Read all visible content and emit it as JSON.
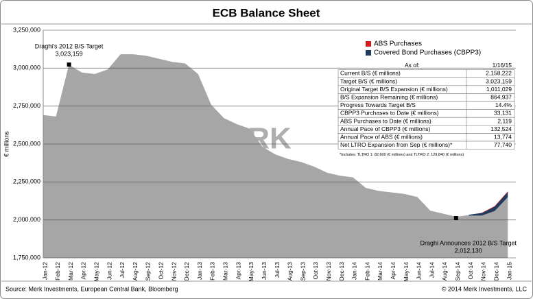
{
  "chart_data": {
    "type": "area",
    "title": "ECB Balance Sheet",
    "y_label": "€ millions",
    "watermark": "MERK",
    "categories": [
      "Jan-12",
      "Feb-12",
      "Mar-12",
      "Apr-12",
      "May-12",
      "Jun-12",
      "Jul-12",
      "Aug-12",
      "Sep-12",
      "Oct-12",
      "Nov-12",
      "Dec-12",
      "Jan-13",
      "Feb-13",
      "Mar-13",
      "Apr-13",
      "May-13",
      "Jun-13",
      "Jul-13",
      "Aug-13",
      "Sep-13",
      "Oct-13",
      "Nov-13",
      "Dec-13",
      "Jan-14",
      "Feb-14",
      "Mar-14",
      "Apr-14",
      "May-14",
      "Jun-14",
      "Jul-14",
      "Aug-14",
      "Sep-14",
      "Oct-14",
      "Nov-14",
      "Dec-14",
      "Jan-15"
    ],
    "series": [
      {
        "color": "#a6a6a6",
        "values": [
          2690000,
          2680000,
          3020000,
          2970000,
          2960000,
          2990000,
          3090000,
          3090000,
          3080000,
          3060000,
          3040000,
          3030000,
          2960000,
          2760000,
          2670000,
          2630000,
          2600000,
          2480000,
          2430000,
          2400000,
          2380000,
          2350000,
          2310000,
          2290000,
          2280000,
          2210000,
          2190000,
          2180000,
          2170000,
          2150000,
          2060000,
          2040000,
          2020000,
          2030000,
          2030000,
          2060000,
          2150000
        ]
      },
      {
        "name": "Covered Bond Purchases (CBPP3)",
        "color": "#1f3b5e",
        "values": [
          null,
          null,
          null,
          null,
          null,
          null,
          null,
          null,
          null,
          null,
          null,
          null,
          null,
          null,
          null,
          null,
          null,
          null,
          null,
          null,
          null,
          null,
          null,
          null,
          null,
          null,
          null,
          null,
          null,
          null,
          null,
          null,
          null,
          3000,
          15000,
          28000,
          33000
        ]
      },
      {
        "name": "ABS Purchases",
        "color": "#d7191c",
        "values": [
          null,
          null,
          null,
          null,
          null,
          null,
          null,
          null,
          null,
          null,
          null,
          null,
          null,
          null,
          null,
          null,
          null,
          null,
          null,
          null,
          null,
          null,
          null,
          null,
          null,
          null,
          null,
          null,
          null,
          null,
          null,
          null,
          null,
          null,
          500,
          1500,
          2000
        ]
      }
    ],
    "ylim": [
      1750000,
      3250000
    ],
    "yticks": [
      {
        "value": 1750000,
        "label": "1,750,000"
      },
      {
        "value": 2000000,
        "label": "2,000,000"
      },
      {
        "value": 2250000,
        "label": "2,250,000"
      },
      {
        "value": 2500000,
        "label": "2,500,000"
      },
      {
        "value": 2750000,
        "label": "2,750,000"
      },
      {
        "value": 3000000,
        "label": "3,000,000"
      },
      {
        "value": 3250000,
        "label": "3,250,000"
      }
    ],
    "grid": true,
    "annotations": [
      {
        "text": "Draghi's 2012 B/S Target",
        "value_label": "3,023,159",
        "value": 3023159,
        "category": "Mar-12"
      },
      {
        "text": "Draghi Announces 2012 B/S Target",
        "value_label": "2,012,130",
        "value": 2012130,
        "category": "Sep-14"
      }
    ],
    "table": {
      "header": [
        "As of:",
        "1/16/15"
      ],
      "rows": [
        [
          "Current B/S (€ millions)",
          "2,158,222"
        ],
        [
          "Target B/S (€ millions)",
          "3,023,159"
        ],
        [
          "Original Target B/S Expansion (€ millions)",
          "1,011,029"
        ],
        [
          "B/S Expansion Remaining (€ millions)",
          "864,937"
        ],
        [
          "Progress Towards Target B/S",
          "14.4%"
        ],
        [
          "CBPP3 Purchases to Date (€ millions)",
          "33,131"
        ],
        [
          "ABS Purchases to Date (€ millions)",
          "2,119"
        ],
        [
          "Annual Pace of CBPP3 (€ millions)",
          "132,524"
        ],
        [
          "Annual Pace of ABS (€ millions)",
          "13,774"
        ],
        [
          "Net LTRO Expansion from Sep (€ millions)*",
          "77,740"
        ]
      ],
      "note": "*Includes: TLTRO 1: 82,600 (€ millions) and TLTRO 2: 129,840 (€ millions)"
    },
    "source": "Source: Merk Investments, European Central Bank, Bloomberg",
    "copyright": "© 2014 Merk Investments, LLC"
  }
}
